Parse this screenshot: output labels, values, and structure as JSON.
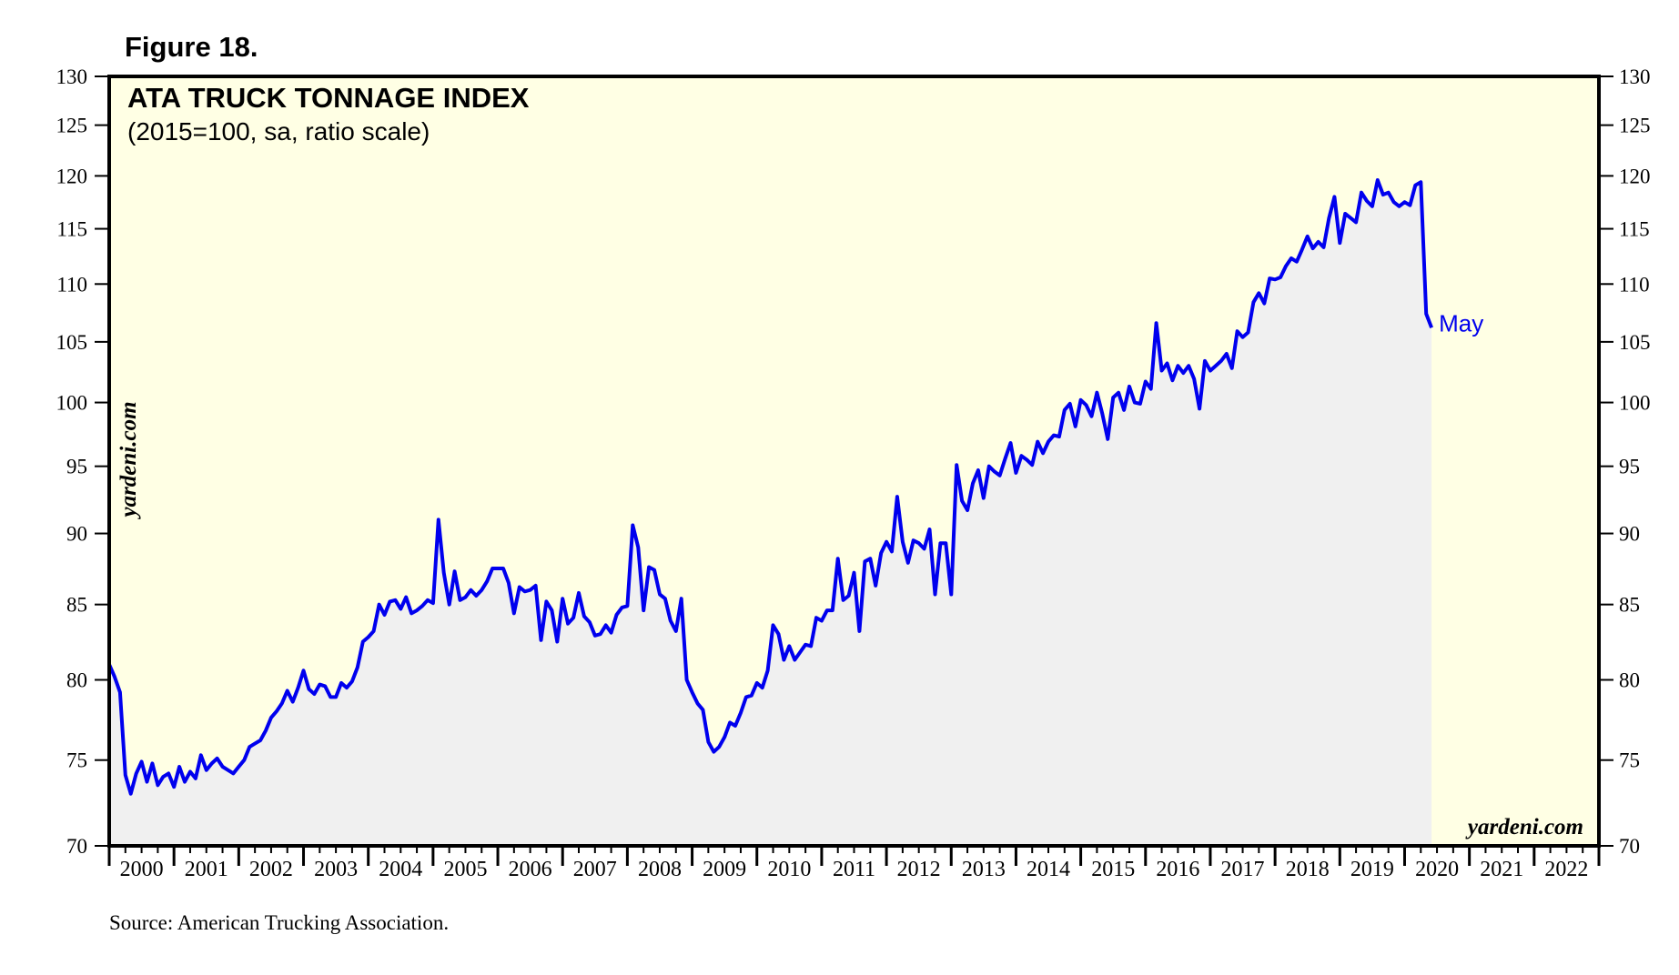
{
  "figure_label": "Figure 18.",
  "source": "Source: American Trucking Association.",
  "watermark": "yardeni.com",
  "colors": {
    "plot_background": "#ffffe4",
    "area_fill": "#f0f0f0",
    "line": "#0000ee",
    "axis": "#000000"
  },
  "chart_data": {
    "type": "line",
    "title": "ATA TRUCK TONNAGE INDEX",
    "subtitle": "(2015=100, sa, ratio scale)",
    "xlabel": "",
    "ylabel": "",
    "scale": "log",
    "xlim": [
      2000,
      2023
    ],
    "ylim": [
      70,
      130
    ],
    "yticks": [
      70,
      75,
      80,
      85,
      90,
      95,
      100,
      105,
      110,
      115,
      120,
      125,
      130
    ],
    "xtick_labels": [
      "2000",
      "2001",
      "2002",
      "2003",
      "2004",
      "2005",
      "2006",
      "2007",
      "2008",
      "2009",
      "2010",
      "2011",
      "2012",
      "2013",
      "2014",
      "2015",
      "2016",
      "2017",
      "2018",
      "2019",
      "2020",
      "2021",
      "2022"
    ],
    "end_annotation": "May",
    "series": [
      {
        "name": "ATA Truck Tonnage Index",
        "start": 2000.0,
        "step_months": 1,
        "values": [
          81.0,
          80.2,
          79.2,
          74.1,
          73.0,
          74.2,
          74.9,
          73.7,
          74.8,
          73.5,
          74.0,
          74.2,
          73.4,
          74.6,
          73.7,
          74.3,
          73.9,
          75.3,
          74.4,
          74.8,
          75.1,
          74.6,
          74.4,
          74.2,
          74.6,
          75.0,
          75.8,
          76.0,
          76.2,
          76.8,
          77.6,
          78.0,
          78.5,
          79.3,
          78.6,
          79.5,
          80.6,
          79.4,
          79.1,
          79.7,
          79.6,
          78.9,
          78.9,
          79.8,
          79.5,
          79.9,
          80.8,
          82.5,
          82.8,
          83.2,
          85.0,
          84.3,
          85.2,
          85.3,
          84.7,
          85.5,
          84.4,
          84.6,
          84.9,
          85.3,
          85.1,
          91.0,
          87.2,
          85.0,
          87.3,
          85.3,
          85.5,
          86.0,
          85.6,
          86.0,
          86.6,
          87.5,
          87.5,
          87.5,
          86.5,
          84.4,
          86.2,
          85.9,
          86.0,
          86.3,
          82.6,
          85.2,
          84.6,
          82.5,
          85.4,
          83.7,
          84.1,
          85.8,
          84.2,
          83.8,
          82.9,
          83.0,
          83.6,
          83.1,
          84.3,
          84.8,
          84.9,
          90.6,
          89.0,
          84.6,
          87.6,
          87.4,
          85.7,
          85.4,
          83.9,
          83.2,
          85.4,
          80.0,
          79.2,
          78.5,
          78.1,
          76.1,
          75.5,
          75.8,
          76.4,
          77.3,
          77.1,
          77.9,
          78.9,
          79.0,
          79.8,
          79.5,
          80.6,
          83.6,
          83.0,
          81.3,
          82.2,
          81.3,
          81.8,
          82.3,
          82.2,
          84.1,
          83.9,
          84.6,
          84.6,
          88.2,
          85.3,
          85.6,
          87.2,
          83.2,
          88.0,
          88.2,
          86.3,
          88.6,
          89.4,
          88.7,
          92.7,
          89.4,
          87.9,
          89.5,
          89.3,
          88.9,
          90.3,
          85.7,
          89.3,
          89.3,
          85.7,
          95.1,
          92.4,
          91.7,
          93.7,
          94.7,
          92.6,
          95.0,
          94.6,
          94.3,
          95.6,
          96.8,
          94.5,
          95.8,
          95.5,
          95.1,
          96.9,
          96.0,
          96.9,
          97.4,
          97.3,
          99.4,
          99.9,
          98.1,
          100.2,
          99.8,
          98.9,
          100.8,
          99.1,
          97.1,
          100.4,
          100.8,
          99.4,
          101.3,
          100.0,
          99.9,
          101.7,
          101.1,
          106.6,
          102.6,
          103.2,
          101.8,
          103.0,
          102.4,
          103.0,
          101.9,
          99.5,
          103.4,
          102.6,
          103.0,
          103.4,
          104.0,
          102.8,
          105.9,
          105.4,
          105.8,
          108.4,
          109.2,
          108.3,
          110.5,
          110.4,
          110.6,
          111.6,
          112.3,
          112.0,
          113.1,
          114.3,
          113.2,
          113.8,
          113.3,
          116.0,
          118.0,
          113.7,
          116.4,
          116.0,
          115.6,
          118.4,
          117.6,
          117.1,
          119.6,
          118.2,
          118.4,
          117.5,
          117.1,
          117.5,
          117.2,
          119.1,
          119.4,
          107.4,
          106.2
        ]
      }
    ]
  }
}
